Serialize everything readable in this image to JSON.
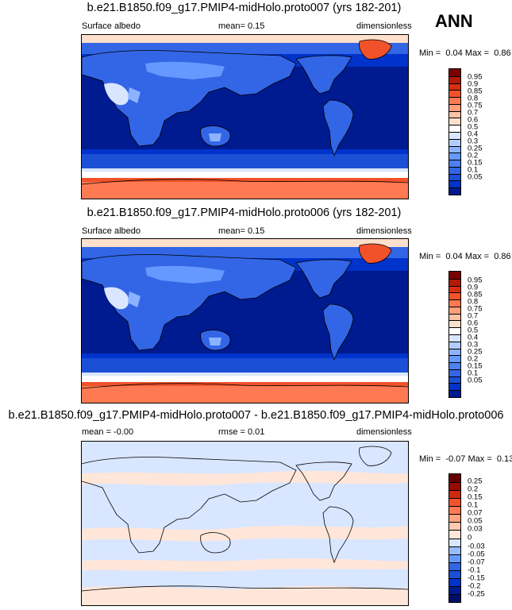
{
  "annotation": "ANN",
  "palettes": {
    "abs": [
      "#001a8f",
      "#0033cc",
      "#1a4fd6",
      "#3366e6",
      "#4d80f0",
      "#6699ff",
      "#8cb3ff",
      "#b3ccff",
      "#d9e6ff",
      "#ffffff",
      "#ffe0cc",
      "#ffc2a6",
      "#ff9e7a",
      "#ff7a52",
      "#f2522a",
      "#d92e12",
      "#b31a06",
      "#7a0000"
    ],
    "diff": [
      "#000f66",
      "#001a8f",
      "#0033cc",
      "#1a4fd6",
      "#3366e6",
      "#6699ff",
      "#99bbff",
      "#d9e6ff",
      "#ffe6d9",
      "#ffcbb3",
      "#ffa380",
      "#ff7a52",
      "#f2522a",
      "#cc2a0d",
      "#990a00",
      "#660000"
    ]
  },
  "panels": [
    {
      "title": "b.e21.B1850.f09_g17.PMIP4-midHolo.proto007 (yrs 182-201)",
      "left_label": "Surface albedo",
      "mid_label": "mean=  0.15",
      "right_label": "dimensionless",
      "min_label": "Min =",
      "min_value": "0.04",
      "max_label": "Max =",
      "max_value": "0.86",
      "colorbar_labels": [
        "0.95",
        "0.9",
        "0.85",
        "0.8",
        "0.75",
        "0.7",
        "0.6",
        "0.5",
        "0.4",
        "0.3",
        "0.25",
        "0.2",
        "0.15",
        "0.1",
        "0.05"
      ],
      "palette": "abs"
    },
    {
      "title": "b.e21.B1850.f09_g17.PMIP4-midHolo.proto006 (yrs 182-201)",
      "left_label": "Surface albedo",
      "mid_label": "mean=  0.15",
      "right_label": "dimensionless",
      "min_label": "Min =",
      "min_value": "0.04",
      "max_label": "Max =",
      "max_value": "0.86",
      "colorbar_labels": [
        "0.95",
        "0.9",
        "0.85",
        "0.8",
        "0.75",
        "0.7",
        "0.6",
        "0.5",
        "0.4",
        "0.3",
        "0.25",
        "0.2",
        "0.15",
        "0.1",
        "0.05"
      ],
      "palette": "abs"
    },
    {
      "title": "b.e21.B1850.f09_g17.PMIP4-midHolo.proto007 - b.e21.B1850.f09_g17.PMIP4-midHolo.proto006",
      "left_label": "mean =  -0.00",
      "mid_label": "rmse =  0.01",
      "right_label": "dimensionless",
      "min_label": "Min =",
      "min_value": "-0.07",
      "max_label": "Max =",
      "max_value": "0.13",
      "colorbar_labels": [
        "0.25",
        "0.2",
        "0.15",
        "0.1",
        "0.07",
        "0.05",
        "0.03",
        "0",
        "-0.03",
        "-0.05",
        "-0.07",
        "-0.1",
        "-0.15",
        "-0.2",
        "-0.25"
      ],
      "palette": "diff"
    }
  ]
}
